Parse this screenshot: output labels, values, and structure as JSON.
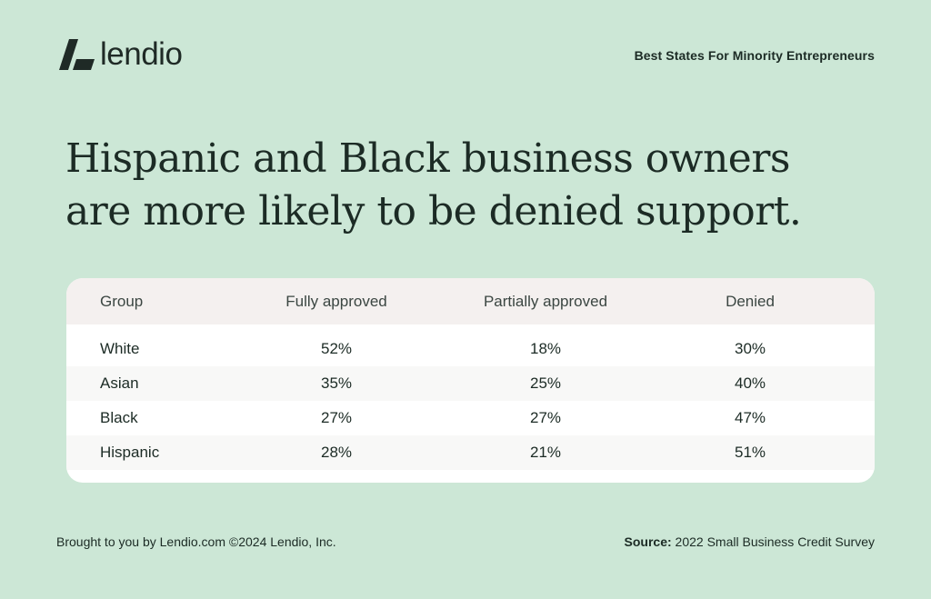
{
  "brand": {
    "name": "lendio",
    "color": "#1f2a26"
  },
  "header": {
    "label": "Best States For Minority Entrepreneurs"
  },
  "headline": "Hispanic and Black business owners are more likely to be denied support.",
  "table": {
    "columns": [
      "Group",
      "Fully approved",
      "Partially approved",
      "Denied"
    ],
    "rows": [
      {
        "group": "White",
        "fully": "52%",
        "partially": "18%",
        "denied": "30%"
      },
      {
        "group": "Asian",
        "fully": "35%",
        "partially": "25%",
        "denied": "40%"
      },
      {
        "group": "Black",
        "fully": "27%",
        "partially": "27%",
        "denied": "47%"
      },
      {
        "group": "Hispanic",
        "fully": "28%",
        "partially": "21%",
        "denied": "51%"
      }
    ]
  },
  "footer": {
    "credit": "Brought to you by Lendio.com ©2024 Lendio, Inc.",
    "source_label": "Source:",
    "source_text": " 2022 Small Business Credit Survey"
  },
  "colors": {
    "background": "#cce7d6",
    "card": "#ffffff",
    "header_row": "#f4f0ef"
  }
}
